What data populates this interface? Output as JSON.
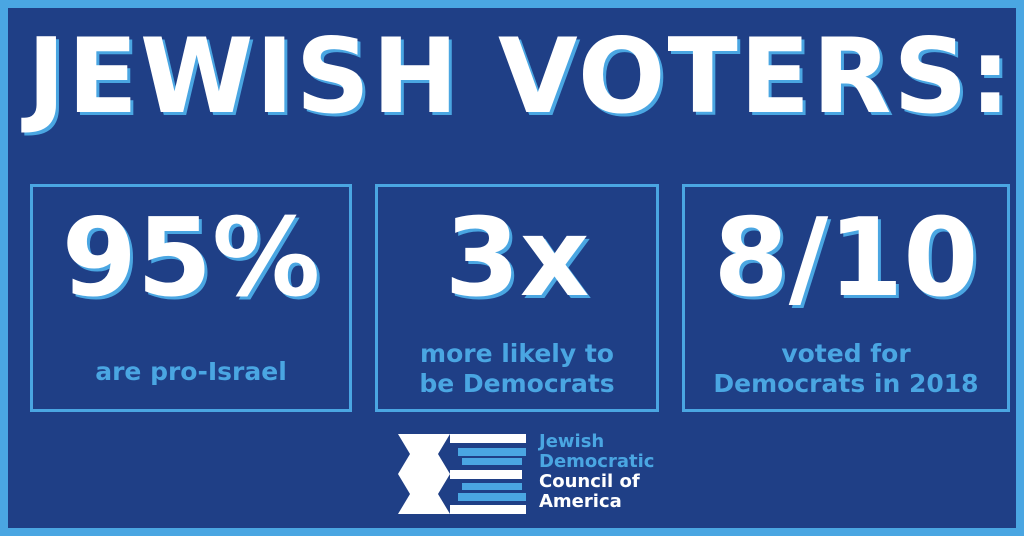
{
  "headline": "JEWISH VOTERS:",
  "stats": [
    {
      "value": "95%",
      "description_lines": [
        "are pro-Israel"
      ]
    },
    {
      "value": "3x",
      "description_lines": [
        "more likely to",
        "be Democrats"
      ]
    },
    {
      "value": "8/10",
      "description_lines": [
        "voted for",
        "Democrats in 2018"
      ]
    }
  ],
  "logo": {
    "icon": "jdca-star-stripes-icon",
    "lines": [
      "Jewish",
      "Democratic",
      "Council of",
      "America"
    ]
  },
  "colors": {
    "background": "#1f3f86",
    "accent": "#4aa6e2",
    "text": "#ffffff"
  }
}
